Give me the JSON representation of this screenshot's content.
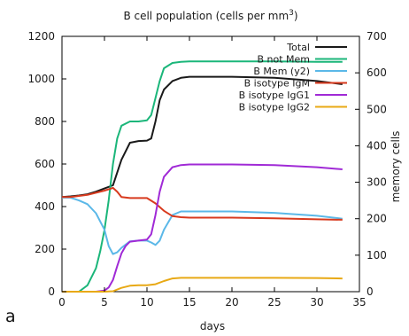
{
  "chart_data": {
    "type": "line",
    "panel_label": "a",
    "title": "B cell population (cells per mm",
    "title_superscript": "3",
    "title_close": ")",
    "xlabel": "days",
    "y2label": "memory cells",
    "xlim": [
      0,
      35
    ],
    "ylim": [
      0,
      1200
    ],
    "y2lim": [
      0,
      700
    ],
    "xticks": [
      "0",
      "5",
      "10",
      "15",
      "20",
      "25",
      "30",
      "35"
    ],
    "yticks": [
      "0",
      "200",
      "400",
      "600",
      "800",
      "1000",
      "1200"
    ],
    "y2ticks": [
      "0",
      "100",
      "200",
      "300",
      "400",
      "500",
      "600",
      "700"
    ],
    "legend_position": "top-right",
    "series": [
      {
        "name": "Total",
        "color": "#1a1a1a",
        "axis": "left",
        "x": [
          0,
          1,
          2,
          3,
          4,
          5,
          6,
          7,
          8,
          9,
          10,
          10.5,
          11,
          11.5,
          12,
          13,
          14,
          15,
          20,
          25,
          30,
          33
        ],
        "y": [
          445,
          448,
          452,
          458,
          470,
          485,
          500,
          620,
          700,
          708,
          710,
          720,
          800,
          900,
          950,
          990,
          1005,
          1010,
          1010,
          1005,
          990,
          975
        ]
      },
      {
        "name": "B not Mem",
        "color": "#1bb67a",
        "axis": "left",
        "x": [
          0,
          1,
          2,
          3,
          4,
          4.5,
          5,
          5.5,
          6,
          6.5,
          7,
          8,
          9,
          10,
          10.5,
          11,
          11.5,
          12,
          13,
          14,
          15,
          20,
          25,
          30,
          33
        ],
        "y": [
          0,
          0,
          0,
          30,
          110,
          190,
          290,
          430,
          600,
          720,
          780,
          800,
          800,
          805,
          830,
          910,
          990,
          1050,
          1075,
          1080,
          1082,
          1082,
          1082,
          1080,
          1080
        ]
      },
      {
        "name": "B Mem (y2)",
        "color": "#5bb8e8",
        "axis": "right",
        "x": [
          0,
          1,
          2,
          3,
          4,
          5,
          5.5,
          6,
          6.5,
          7,
          8,
          9,
          10,
          10.5,
          11,
          11.5,
          12,
          13,
          14,
          15,
          20,
          25,
          30,
          33
        ],
        "y": [
          258,
          258,
          250,
          240,
          215,
          170,
          125,
          103,
          108,
          120,
          138,
          140,
          140,
          135,
          128,
          140,
          170,
          210,
          220,
          220,
          220,
          216,
          208,
          200
        ]
      },
      {
        "name": "B isotype IgM",
        "color": "#d83a1e",
        "axis": "left",
        "x": [
          0,
          1,
          2,
          3,
          4,
          5,
          6,
          6.5,
          7,
          8,
          9,
          10,
          11,
          12,
          13,
          14,
          15,
          20,
          25,
          30,
          33
        ],
        "y": [
          445,
          445,
          450,
          455,
          465,
          475,
          488,
          470,
          445,
          440,
          440,
          440,
          415,
          380,
          355,
          350,
          348,
          348,
          345,
          340,
          338
        ]
      },
      {
        "name": "B isotype IgG1",
        "color": "#a02ad6",
        "axis": "left",
        "x": [
          0,
          1,
          2,
          3,
          4,
          5,
          5.5,
          6,
          6.5,
          7,
          7.5,
          8,
          9,
          10,
          10.5,
          11,
          11.5,
          12,
          13,
          14,
          15,
          20,
          25,
          30,
          33
        ],
        "y": [
          0,
          0,
          0,
          0,
          0,
          5,
          20,
          55,
          120,
          180,
          215,
          235,
          240,
          245,
          270,
          360,
          470,
          540,
          585,
          595,
          598,
          598,
          595,
          585,
          575
        ]
      },
      {
        "name": "B isotype IgG2",
        "color": "#e8a915",
        "axis": "left",
        "x": [
          0,
          1,
          2,
          3,
          4,
          5,
          6,
          7,
          8,
          9,
          10,
          11,
          12,
          13,
          14,
          15,
          20,
          25,
          30,
          33
        ],
        "y": [
          0,
          0,
          0,
          0,
          0,
          0,
          2,
          18,
          28,
          30,
          30,
          35,
          50,
          62,
          65,
          65,
          65,
          65,
          64,
          62
        ]
      }
    ]
  }
}
